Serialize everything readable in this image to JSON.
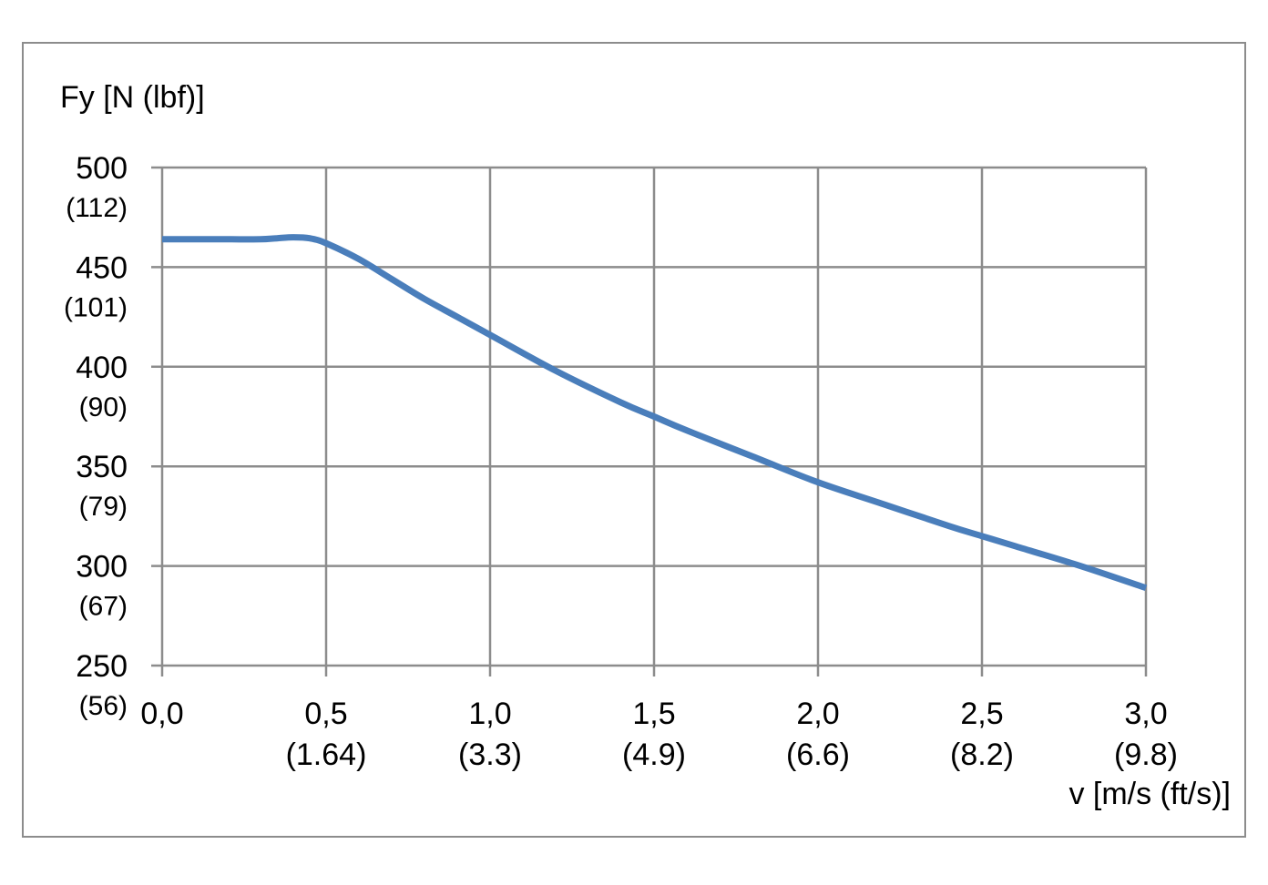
{
  "chart_data": {
    "type": "line",
    "title": "",
    "ylabel": "Fy [N (lbf)]",
    "xlabel": "v [m/s (ft/s)]",
    "xlim": [
      0,
      3.0
    ],
    "ylim": [
      250,
      500
    ],
    "grid": true,
    "x_ticks": [
      {
        "value": 0.0,
        "label": "0,0",
        "sublabel": ""
      },
      {
        "value": 0.5,
        "label": "0,5",
        "sublabel": "(1.64)"
      },
      {
        "value": 1.0,
        "label": "1,0",
        "sublabel": "(3.3)"
      },
      {
        "value": 1.5,
        "label": "1,5",
        "sublabel": "(4.9)"
      },
      {
        "value": 2.0,
        "label": "2,0",
        "sublabel": "(6.6)"
      },
      {
        "value": 2.5,
        "label": "2,5",
        "sublabel": "(8.2)"
      },
      {
        "value": 3.0,
        "label": "3,0",
        "sublabel": "(9.8)"
      }
    ],
    "y_ticks": [
      {
        "value": 500,
        "label": "500",
        "sublabel": "(112)"
      },
      {
        "value": 450,
        "label": "450",
        "sublabel": "(101)"
      },
      {
        "value": 400,
        "label": "400",
        "sublabel": "(90)"
      },
      {
        "value": 350,
        "label": "350",
        "sublabel": "(79)"
      },
      {
        "value": 300,
        "label": "300",
        "sublabel": "(67)"
      },
      {
        "value": 250,
        "label": "250",
        "sublabel": "(56)"
      }
    ],
    "series": [
      {
        "color": "#4a7ebb",
        "x": [
          0.0,
          0.1,
          0.2,
          0.3,
          0.35,
          0.4,
          0.45,
          0.5,
          0.6,
          0.7,
          0.8,
          0.9,
          1.0,
          1.2,
          1.4,
          1.5,
          1.6,
          1.8,
          2.0,
          2.2,
          2.4,
          2.5,
          2.6,
          2.8,
          3.0
        ],
        "y": [
          464,
          464,
          464,
          464,
          464.5,
          465,
          464.5,
          462,
          454,
          444,
          434,
          425,
          416,
          398,
          382,
          375,
          368,
          355,
          342,
          331,
          320,
          315,
          310,
          300,
          289
        ]
      }
    ]
  }
}
